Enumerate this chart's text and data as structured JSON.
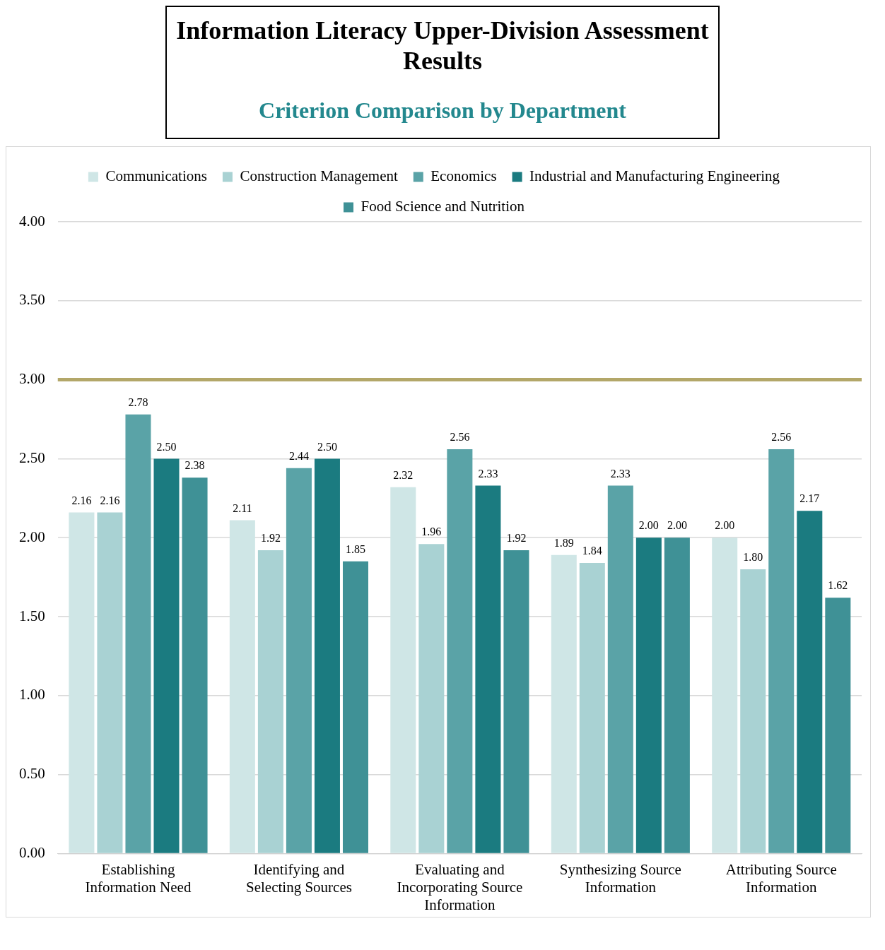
{
  "chart_data": {
    "type": "bar",
    "title": "Information Literacy Upper-Division Assessment Results",
    "subtitle": "Criterion Comparison by Department",
    "categories": [
      "Establishing Information Need",
      "Identifying and Selecting Sources",
      "Evaluating and Incorporating Source Information",
      "Synthesizing Source Information",
      "Attributing Source Information"
    ],
    "series": [
      {
        "name": "Communications",
        "color": "#cfe6e6",
        "values": [
          2.16,
          2.11,
          2.32,
          1.89,
          2.0
        ],
        "value_labels": [
          "2.16",
          "2.11",
          "2.32",
          "1.89",
          "2.00"
        ]
      },
      {
        "name": "Construction Management",
        "color": "#a9d2d3",
        "values": [
          2.16,
          1.92,
          1.96,
          1.84,
          1.8
        ],
        "value_labels": [
          "2.16",
          "1.92",
          "1.96",
          "1.84",
          "1.80"
        ]
      },
      {
        "name": "Economics",
        "color": "#5aa3a7",
        "values": [
          2.78,
          2.44,
          2.56,
          2.33,
          2.56
        ],
        "value_labels": [
          "2.78",
          "2.44",
          "2.56",
          "2.33",
          "2.56"
        ]
      },
      {
        "name": "Industrial and Manufacturing Engineering",
        "color": "#1b7b80",
        "values": [
          2.5,
          2.5,
          2.33,
          2.0,
          2.17
        ],
        "value_labels": [
          "2.50",
          "2.50",
          "2.33",
          "2.00",
          "2.17"
        ]
      },
      {
        "name": "Food Science and Nutrition",
        "color": "#3f9196",
        "values": [
          2.38,
          1.85,
          1.92,
          2.0,
          1.62
        ],
        "value_labels": [
          "2.38",
          "1.85",
          "1.92",
          "2.00",
          "1.62"
        ]
      }
    ],
    "ylim": [
      0,
      4
    ],
    "yticks": [
      {
        "value": 0,
        "label": "0.00"
      },
      {
        "value": 0.5,
        "label": "0.50"
      },
      {
        "value": 1,
        "label": "1.00"
      },
      {
        "value": 1.5,
        "label": "1.50"
      },
      {
        "value": 2,
        "label": "2.00"
      },
      {
        "value": 2.5,
        "label": "2.50"
      },
      {
        "value": 3,
        "label": "3.00"
      },
      {
        "value": 3.5,
        "label": "3.50"
      },
      {
        "value": 4,
        "label": "4.00"
      }
    ],
    "ref_lines": [
      {
        "axis": "y",
        "value": 3,
        "color": "#b3a769"
      }
    ],
    "grid": "y",
    "legend": "top"
  }
}
